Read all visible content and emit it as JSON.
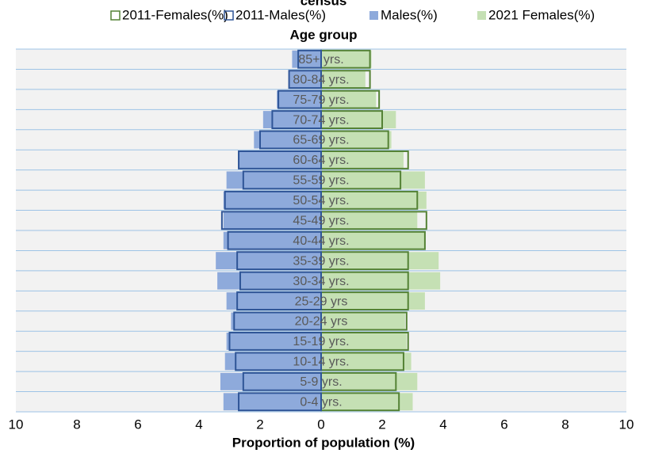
{
  "chart_data": {
    "type": "bar",
    "title": "census",
    "y_axis_label": "Age group",
    "x_axis_label": "Proportion of population (%)",
    "categories": [
      "0-4 yrs.",
      "5-9 yrs.",
      "10-14 yrs.",
      "15-19 yrs.",
      "20-24 yrs",
      "25-29 yrs",
      "30-34 yrs.",
      "35-39 yrs.",
      "40-44 yrs.",
      "45-49 yrs.",
      "50-54 yrs.",
      "55-59 yrs.",
      "60-64 yrs.",
      "65-69 yrs.",
      "70-74 yrs.",
      "75-79 yrs.",
      "80-84 yrs.",
      "85+ yrs."
    ],
    "series": [
      {
        "name": "2011-Females(%)",
        "color": "#548235",
        "values": [
          2.55,
          2.45,
          2.7,
          2.85,
          2.8,
          2.85,
          2.85,
          2.85,
          3.4,
          3.45,
          3.15,
          2.6,
          2.85,
          2.2,
          2.0,
          1.9,
          1.6,
          1.6
        ]
      },
      {
        "name": "2011-Males(%)",
        "color": "#2f5597",
        "values": [
          2.7,
          2.55,
          2.8,
          3.0,
          2.85,
          2.75,
          2.65,
          2.75,
          3.05,
          3.25,
          3.15,
          2.55,
          2.7,
          2.0,
          1.6,
          1.4,
          1.05,
          0.75
        ]
      },
      {
        "name": "Males(%)",
        "color": "#8eaadb",
        "values": [
          3.2,
          3.3,
          3.15,
          3.1,
          2.95,
          3.1,
          3.4,
          3.45,
          3.2,
          3.2,
          3.2,
          3.1,
          2.7,
          2.2,
          1.9,
          1.45,
          1.05,
          0.95
        ]
      },
      {
        "name": "2021 Females(%)",
        "color": "#c5e0b4",
        "values": [
          3.0,
          3.15,
          2.95,
          2.8,
          2.75,
          3.4,
          3.9,
          3.85,
          3.4,
          3.15,
          3.45,
          3.4,
          2.7,
          2.3,
          2.45,
          1.8,
          1.45,
          1.65
        ]
      }
    ],
    "xlim": [
      -10,
      10
    ],
    "xticks": [
      {
        "value": -10,
        "label": "10"
      },
      {
        "value": -8,
        "label": "8"
      },
      {
        "value": -6,
        "label": "6"
      },
      {
        "value": -4,
        "label": "4"
      },
      {
        "value": -2,
        "label": "2"
      },
      0,
      2,
      4,
      6,
      8,
      10
    ]
  }
}
